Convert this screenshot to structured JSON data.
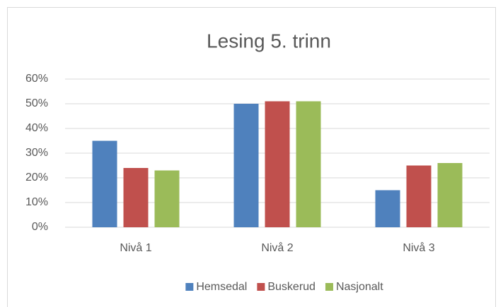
{
  "chart_data": {
    "type": "bar",
    "title": "Lesing 5. trinn",
    "categories": [
      "Nivå 1",
      "Nivå 2",
      "Nivå 3"
    ],
    "series": [
      {
        "name": "Hemsedal",
        "color": "#4f81bd",
        "values": [
          35,
          50,
          15
        ]
      },
      {
        "name": "Buskerud",
        "color": "#c0504d",
        "values": [
          24,
          51,
          25
        ]
      },
      {
        "name": "Nasjonalt",
        "color": "#9bbb59",
        "values": [
          23,
          51,
          26
        ]
      }
    ],
    "ylim": [
      0,
      60
    ],
    "yticks": [
      {
        "value": 0,
        "label": "0%"
      },
      {
        "value": 10,
        "label": "10%"
      },
      {
        "value": 20,
        "label": "20%"
      },
      {
        "value": 30,
        "label": "30%"
      },
      {
        "value": 40,
        "label": "40%"
      },
      {
        "value": 50,
        "label": "50%"
      },
      {
        "value": 60,
        "label": "60%"
      }
    ],
    "grid": true,
    "legend": "bottom"
  }
}
